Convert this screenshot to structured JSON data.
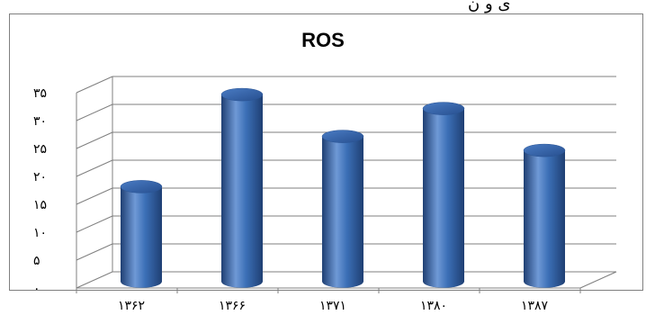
{
  "top_text_fragment": "ی و ن",
  "chart_data": {
    "type": "bar",
    "title": "ROS",
    "xlabel": "",
    "ylabel": "",
    "categories": [
      "۱۳۶۲",
      "۱۳۶۶",
      "۱۳۷۱",
      "۱۳۸۰",
      "۱۳۸۷"
    ],
    "values": [
      17,
      33.5,
      26,
      31,
      23.5
    ],
    "ylim": [
      0,
      35
    ],
    "yticks": [
      0,
      5,
      10,
      15,
      20,
      25,
      30,
      35
    ],
    "ytick_labels": [
      "۰",
      "۵",
      "۱۰",
      "۱۵",
      "۲۰",
      "۲۵",
      "۳۰",
      "۳۵"
    ],
    "grid": true,
    "legend": "none",
    "bar_style": "3d-cylinder",
    "colors": {
      "bar": "#3b6fb6",
      "bar_dark": "#1f3f73",
      "bar_light": "#7ea6df",
      "grid": "#7f7f7f",
      "frame": "#7f7f7f"
    }
  }
}
